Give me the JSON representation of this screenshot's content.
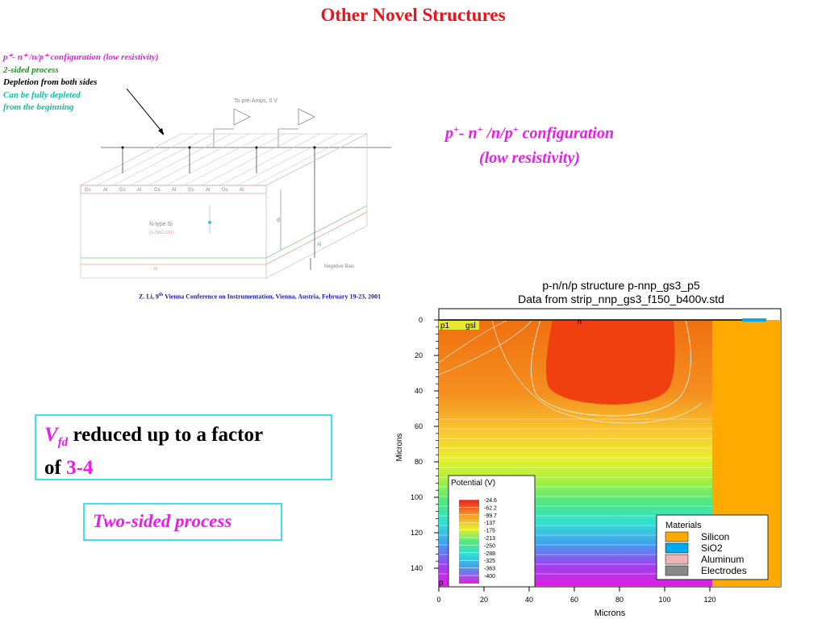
{
  "title": "Other Novel Structures",
  "notes": {
    "line1": "p⁺- n⁺ /n/p⁺ configuration (low resistivity)",
    "line2": "2-sided process",
    "line3": "Depletion from both sides",
    "line4": "Can be fully depleted",
    "line5": "from the beginning"
  },
  "schematic": {
    "preamp_label": "To pre-Amps, 0 V",
    "bulk_label": "N-type Si",
    "bulk_sub": "(1-5kΩ·cm)",
    "thickness_label": "d",
    "al_label": "Al",
    "bias_label": "Negative Bias",
    "segments": [
      "Gs",
      "Al",
      "Gs",
      "Al",
      "Gs",
      "Al",
      "Gs",
      "Al",
      "Gs",
      "Al"
    ]
  },
  "config": {
    "line1_p1": "p",
    "line1_sup1": "+",
    "line1_mid": "- n",
    "line1_sup2": "+",
    "line1_mid2": " /n/p",
    "line1_sup3": "+",
    "line1_end": " configuration",
    "line2": "(low resistivity)"
  },
  "citation": {
    "pre": "Z. Li, 9",
    "sup": "th",
    "post": " Vienna Conference on Instrumentation, Vienna, Austria, February 19-23, 2001"
  },
  "vfd_box": {
    "v": "V",
    "sub": "fd",
    "text": " reduced up to a factor",
    "of": "of ",
    "factor": "3-4"
  },
  "two_sided": "Two-sided process",
  "simulation": {
    "title1": "p-n/n/p structure p-nnp_gs3_p5",
    "title2": "Data from strip_nnp_gs3_f150_b400v.std",
    "xlabel": "Microns",
    "ylabel": "Microns",
    "xticks": [
      "0",
      "20",
      "40",
      "60",
      "80",
      "100",
      "120"
    ],
    "yticks": [
      "0",
      "20",
      "40",
      "60",
      "80",
      "100",
      "120",
      "140"
    ],
    "region_labels": {
      "p1": "p1",
      "gsl": "gsl",
      "n": "n",
      "p": "p"
    },
    "potential_legend": {
      "title": "Potential (V)",
      "values": [
        "-24.6",
        "-62.2",
        "-99.7",
        "-137",
        "-175",
        "-213",
        "-250",
        "-288",
        "-325",
        "-363",
        "-400"
      ]
    },
    "materials_legend": {
      "title": "Materials",
      "items": [
        {
          "name": "Silicon",
          "color": "#ffaa00"
        },
        {
          "name": "SiO2",
          "color": "#00aaee"
        },
        {
          "name": "Aluminum",
          "color": "#eeb4b4"
        },
        {
          "name": "Electrodes",
          "color": "#888888"
        }
      ]
    }
  },
  "colors": {
    "title": "#e8141c",
    "magenta": "#e81ee8",
    "box_border": "#3ee0ee",
    "citation": "#1a1aa0"
  }
}
